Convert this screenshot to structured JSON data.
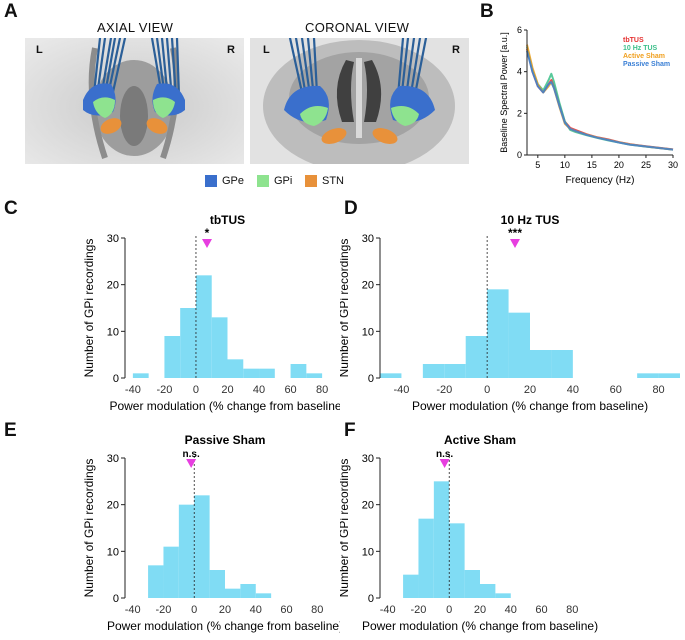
{
  "panels": {
    "a": "A",
    "b": "B",
    "c": "C",
    "d": "D",
    "e": "E",
    "f": "F"
  },
  "panel_a": {
    "axial_title": "AXIAL VIEW",
    "coronal_title": "CORONAL VIEW",
    "left_label": "L",
    "right_label": "R",
    "legend": [
      {
        "label": "GPe",
        "color": "#3a6fcc"
      },
      {
        "label": "GPi",
        "color": "#8ee38f"
      },
      {
        "label": "STN",
        "color": "#e8913a"
      }
    ]
  },
  "chart_data": [
    {
      "id": "B",
      "type": "line",
      "xlabel": "Frequency (Hz)",
      "ylabel": "Baseline Spectral Power [a.u.]",
      "xlim": [
        3,
        30
      ],
      "ylim": [
        0,
        6
      ],
      "xticks": [
        5,
        10,
        15,
        20,
        25,
        30
      ],
      "yticks": [
        0,
        2,
        4,
        6
      ],
      "x": [
        3,
        4,
        5,
        6,
        7,
        7.5,
        8,
        9,
        10,
        11,
        12,
        14,
        16,
        18,
        20,
        22,
        25,
        28,
        30
      ],
      "series": [
        {
          "name": "tbTUS",
          "color": "#e53030",
          "values": [
            5.1,
            4.0,
            3.3,
            3.0,
            3.4,
            3.6,
            3.3,
            2.4,
            1.6,
            1.3,
            1.2,
            1.0,
            0.85,
            0.75,
            0.62,
            0.52,
            0.42,
            0.33,
            0.27
          ]
        },
        {
          "name": "10 Hz TUS",
          "color": "#3cbf8a",
          "values": [
            5.2,
            4.1,
            3.4,
            3.1,
            3.6,
            3.9,
            3.5,
            2.5,
            1.6,
            1.2,
            1.1,
            0.95,
            0.82,
            0.7,
            0.6,
            0.5,
            0.4,
            0.32,
            0.26
          ]
        },
        {
          "name": "Active Sham",
          "color": "#f0a020",
          "values": [
            5.3,
            4.2,
            3.4,
            3.0,
            3.3,
            3.5,
            3.2,
            2.3,
            1.5,
            1.25,
            1.15,
            0.98,
            0.84,
            0.73,
            0.61,
            0.51,
            0.41,
            0.32,
            0.26
          ]
        },
        {
          "name": "Passive Sham",
          "color": "#3a7fd5",
          "values": [
            5.0,
            4.0,
            3.3,
            3.0,
            3.4,
            3.5,
            3.2,
            2.35,
            1.55,
            1.25,
            1.15,
            0.97,
            0.83,
            0.72,
            0.6,
            0.5,
            0.41,
            0.32,
            0.26
          ]
        }
      ]
    },
    {
      "id": "C",
      "type": "bar",
      "title": "tbTUS",
      "xlabel": "Power modulation (% change from baseline)",
      "ylabel": "Number of GPi recordings",
      "xlim": [
        -45,
        85
      ],
      "ylim": [
        0,
        30
      ],
      "xticks": [
        -40,
        -20,
        0,
        20,
        40,
        60,
        80
      ],
      "yticks": [
        0,
        10,
        20,
        30
      ],
      "bin_width": 10,
      "bins": [
        -40,
        -30,
        -20,
        -10,
        0,
        10,
        20,
        30,
        40,
        50,
        60,
        70
      ],
      "counts": [
        1,
        0,
        9,
        15,
        22,
        13,
        4,
        2,
        2,
        0,
        3,
        1
      ],
      "marker_x": 7,
      "significance": "*"
    },
    {
      "id": "D",
      "type": "bar",
      "title": "10 Hz TUS",
      "xlabel": "Power modulation (% change from baseline)",
      "ylabel": "Number of GPi recordings",
      "xlim": [
        -50,
        90
      ],
      "ylim": [
        0,
        30
      ],
      "xticks": [
        -40,
        -20,
        0,
        20,
        40,
        60,
        80
      ],
      "yticks": [
        0,
        10,
        20,
        30
      ],
      "bin_width": 10,
      "bins": [
        -50,
        -40,
        -30,
        -20,
        -10,
        0,
        10,
        20,
        30,
        40,
        50,
        60,
        70,
        80
      ],
      "counts": [
        1,
        0,
        3,
        3,
        9,
        19,
        14,
        6,
        6,
        0,
        0,
        0,
        1,
        1
      ],
      "marker_x": 13,
      "significance": "***"
    },
    {
      "id": "E",
      "type": "bar",
      "title": "Passive Sham",
      "xlabel": "Power modulation (% change from baseline)",
      "ylabel": "Number of GPi recordings",
      "xlim": [
        -45,
        85
      ],
      "ylim": [
        0,
        30
      ],
      "xticks": [
        -40,
        -20,
        0,
        20,
        40,
        60,
        80
      ],
      "yticks": [
        0,
        10,
        20,
        30
      ],
      "bin_width": 10,
      "bins": [
        -30,
        -20,
        -10,
        0,
        10,
        20,
        30,
        40
      ],
      "counts": [
        7,
        11,
        20,
        22,
        6,
        2,
        3,
        1
      ],
      "marker_x": -2,
      "significance": "n.s."
    },
    {
      "id": "F",
      "type": "bar",
      "title": "Active Sham",
      "xlabel": "Power modulation (% change from baseline)",
      "ylabel": "Number of GPi recordings",
      "xlim": [
        -45,
        85
      ],
      "ylim": [
        0,
        30
      ],
      "xticks": [
        -40,
        -20,
        0,
        20,
        40,
        60,
        80
      ],
      "yticks": [
        0,
        10,
        20,
        30
      ],
      "bin_width": 10,
      "bins": [
        -30,
        -20,
        -10,
        0,
        10,
        20,
        30
      ],
      "counts": [
        5,
        17,
        25,
        16,
        6,
        3,
        1
      ],
      "marker_x": -3,
      "significance": "n.s."
    }
  ]
}
